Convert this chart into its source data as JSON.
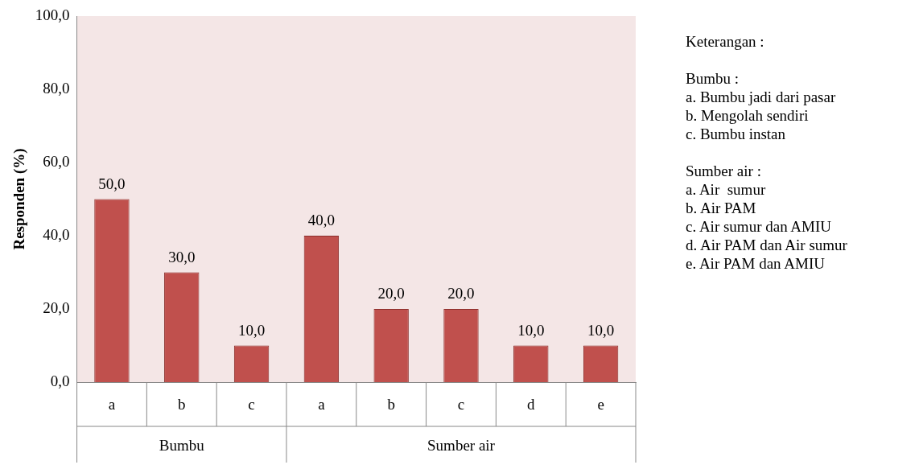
{
  "chart_data": {
    "type": "bar",
    "ylabel": "Responden (%)",
    "categories": [
      "a",
      "b",
      "c",
      "a",
      "b",
      "c",
      "d",
      "e"
    ],
    "values": [
      50,
      30,
      10,
      40,
      20,
      20,
      10,
      10
    ],
    "value_labels": [
      "50,0",
      "30,0",
      "10,0",
      "40,0",
      "20,0",
      "20,0",
      "10,0",
      "10,0"
    ],
    "color": "#c0504d",
    "ylim": [
      0,
      100
    ],
    "yticks": [
      {
        "value": 0,
        "label": "0,0"
      },
      {
        "value": 20,
        "label": "20,0"
      },
      {
        "value": 40,
        "label": "40,0"
      },
      {
        "value": 60,
        "label": "60,0"
      },
      {
        "value": 80,
        "label": "80,0"
      },
      {
        "value": 100,
        "label": "100,0"
      }
    ],
    "grid": false,
    "legend": false,
    "annotations": [
      "Bumbu",
      "Sumber air",
      "Keterangan :",
      "Bumbu :",
      "a. Bumbu jadi dari pasar",
      "b. Mengolah sendiri",
      "c. Bumbu instan",
      "Sumber air :",
      "a. Air  sumur",
      "b. Air PAM",
      "c. Air sumur dan AMIU",
      "d. Air PAM dan Air sumur",
      "e. Air PAM dan AMIU"
    ]
  }
}
